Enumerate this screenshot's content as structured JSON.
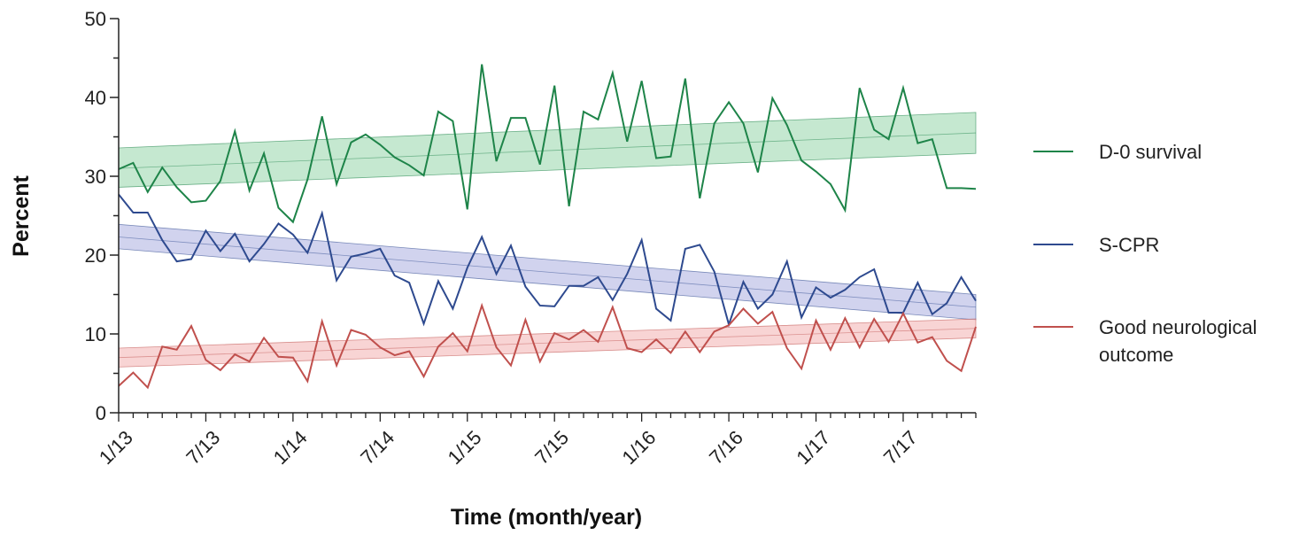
{
  "chart_data": {
    "type": "line",
    "xlabel": "Time (month/year)",
    "ylabel": "Percent",
    "ylim": [
      0,
      50
    ],
    "yticks": [
      0,
      10,
      20,
      30,
      40,
      50
    ],
    "x_start": "2013-01",
    "x_end": "2017-12",
    "xticks": [
      "1/13",
      "7/13",
      "1/14",
      "7/14",
      "1/15",
      "7/15",
      "1/16",
      "7/16",
      "1/17",
      "7/17"
    ],
    "grid": false,
    "legend_position": "right",
    "series": [
      {
        "name": "D-0 survival",
        "color": "#1e8449",
        "band_color": "#9fd8b1",
        "values": [
          30.9,
          31.7,
          28.0,
          31.1,
          28.6,
          26.7,
          26.9,
          29.4,
          35.7,
          28.2,
          32.9,
          26.0,
          24.2,
          29.6,
          37.6,
          29.0,
          34.3,
          35.3,
          34.0,
          32.4,
          31.4,
          30.1,
          38.2,
          37.0,
          25.8,
          44.2,
          31.9,
          37.4,
          37.4,
          31.5,
          41.5,
          26.2,
          38.2,
          37.2,
          43.1,
          34.4,
          42.1,
          32.3,
          32.5,
          42.4,
          27.2,
          36.7,
          39.4,
          36.7,
          30.5,
          39.9,
          36.5,
          32.0,
          30.6,
          29.0,
          25.7,
          41.2,
          35.9,
          34.7,
          41.2,
          34.2,
          34.7,
          28.5,
          28.5,
          28.4
        ],
        "trend_start": 31.0,
        "trend_end": 35.5,
        "band_start": [
          28.6,
          33.6
        ],
        "band_end": [
          32.9,
          38.1
        ]
      },
      {
        "name": "S-CPR",
        "color": "#2e4a8f",
        "band_color": "#b3b6e3",
        "values": [
          27.7,
          25.4,
          25.4,
          21.9,
          19.2,
          19.5,
          23.1,
          20.5,
          22.7,
          19.2,
          21.4,
          24.0,
          22.6,
          20.3,
          25.3,
          16.8,
          19.8,
          20.2,
          20.8,
          17.4,
          16.5,
          11.3,
          16.7,
          13.2,
          18.4,
          22.3,
          17.6,
          21.2,
          16.0,
          13.6,
          13.5,
          16.1,
          16.1,
          17.2,
          14.3,
          17.6,
          21.9,
          13.2,
          11.7,
          20.8,
          21.3,
          17.9,
          11.2,
          16.6,
          13.2,
          15.0,
          19.2,
          12.1,
          15.9,
          14.6,
          15.6,
          17.2,
          18.2,
          12.7,
          12.7,
          16.5,
          12.5,
          13.9,
          17.2,
          14.2
        ],
        "trend_start": 22.3,
        "trend_end": 13.4,
        "band_start": [
          20.8,
          23.9
        ],
        "band_end": [
          11.8,
          15.0
        ]
      },
      {
        "name": "Good neurological outcome",
        "color": "#c0504d",
        "band_color": "#f3b8b8",
        "values": [
          3.4,
          5.1,
          3.2,
          8.4,
          8.0,
          11.0,
          6.7,
          5.4,
          7.4,
          6.5,
          9.5,
          7.1,
          7.0,
          4.0,
          11.6,
          6.0,
          10.5,
          9.9,
          8.3,
          7.3,
          7.8,
          4.6,
          8.4,
          10.1,
          7.8,
          13.6,
          8.3,
          6.0,
          11.8,
          6.5,
          10.1,
          9.3,
          10.5,
          9.0,
          13.4,
          8.2,
          7.7,
          9.3,
          7.6,
          10.3,
          7.7,
          10.3,
          11.1,
          13.2,
          11.3,
          12.8,
          8.2,
          5.6,
          11.7,
          8.0,
          12.0,
          8.3,
          11.9,
          9.0,
          12.6,
          8.9,
          9.6,
          6.6,
          5.3,
          10.9
        ],
        "trend_start": 7.0,
        "trend_end": 10.7,
        "band_start": [
          5.8,
          8.2
        ],
        "band_end": [
          9.5,
          11.9
        ]
      }
    ]
  }
}
